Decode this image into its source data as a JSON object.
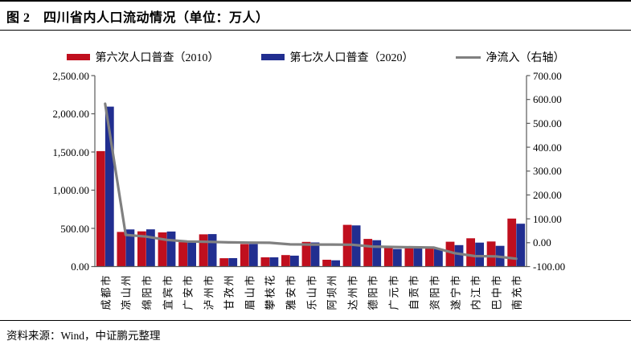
{
  "header": {
    "figure_title": "图 2　四川省内人口流动情况（单位：万人）"
  },
  "legend": {
    "items": [
      {
        "label": "第六次人口普查（2010）",
        "swatch": "rect",
        "color": "#C00F1E"
      },
      {
        "label": "第七次人口普查（2020）",
        "swatch": "rect",
        "color": "#212E90"
      },
      {
        "label": "净流入（右轴）",
        "swatch": "line",
        "color": "#808080"
      }
    ]
  },
  "footer": {
    "source": "资料来源：Wind，中证鹏元整理"
  },
  "chart_data": {
    "type": "bar+line",
    "title": "四川省内人口流动情况",
    "unit": "万人",
    "gridlines": false,
    "legend_position": "top",
    "categories": [
      "成都市",
      "凉山州",
      "绵阳市",
      "宜宾市",
      "广安市",
      "泸州市",
      "甘孜州",
      "眉山市",
      "攀枝花",
      "雅安市",
      "乐山市",
      "阿坝州",
      "达州市",
      "德阳市",
      "广元市",
      "自贡市",
      "资阳市",
      "遂宁市",
      "内江市",
      "巴中市",
      "南充市"
    ],
    "series": [
      {
        "name": "第六次人口普查（2010）",
        "type": "bar",
        "axis": "left",
        "color": "#C00F1E",
        "values": [
          1511.8,
          453.3,
          461.4,
          447.2,
          320.5,
          421.8,
          109.2,
          295.0,
          121.4,
          150.7,
          323.5,
          89.9,
          546.8,
          361.6,
          248.4,
          267.9,
          251.5,
          325.3,
          370.3,
          328.3,
          627.9
        ]
      },
      {
        "name": "第七次人口普查（2020）",
        "type": "bar",
        "axis": "left",
        "color": "#212E90",
        "values": [
          2093.8,
          485.9,
          486.9,
          458.9,
          325.5,
          425.4,
          110.7,
          295.5,
          121.2,
          143.5,
          315.7,
          82.3,
          538.5,
          345.6,
          230.7,
          248.9,
          230.9,
          281.4,
          314.1,
          271.1,
          560.8
        ]
      },
      {
        "name": "净流入（右轴）",
        "type": "line",
        "axis": "right",
        "color": "#808080",
        "values": [
          582.0,
          32.6,
          25.5,
          11.7,
          5.0,
          3.6,
          1.5,
          0.5,
          -0.2,
          -7.2,
          -7.8,
          -7.6,
          -8.3,
          -16.0,
          -17.7,
          -19.0,
          -20.6,
          -43.9,
          -56.2,
          -57.2,
          -67.1
        ]
      }
    ],
    "left_axis": {
      "min": 0,
      "max": 2500,
      "step": 500,
      "tick_labels": [
        "0.00",
        "500.00",
        "1,000.00",
        "1,500.00",
        "2,000.00",
        "2,500.00"
      ]
    },
    "right_axis": {
      "min": -100,
      "max": 700,
      "step": 100,
      "tick_labels": [
        "-100.00",
        "0.00",
        "100.00",
        "200.00",
        "300.00",
        "400.00",
        "500.00",
        "600.00",
        "700.00"
      ]
    }
  }
}
